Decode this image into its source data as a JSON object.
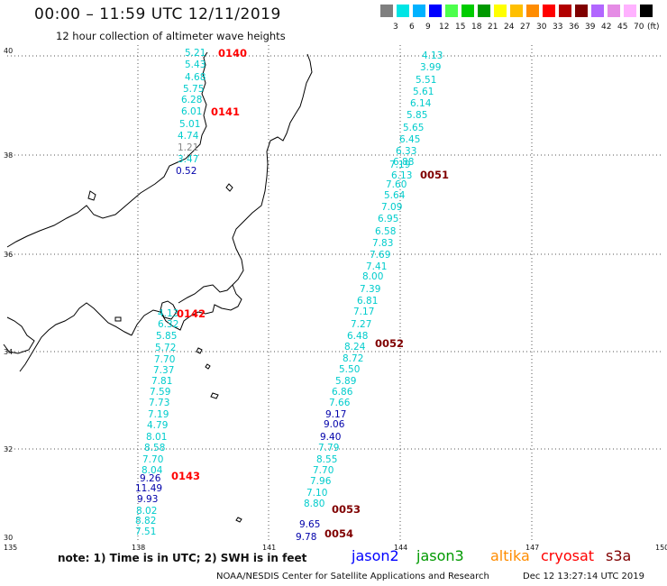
{
  "title": "00:00 – 11:59 UTC 12/11/2019",
  "subtitle": "12 hour collection of altimeter wave heights",
  "legend": {
    "colors": [
      "#7f7f7f",
      "#00e5e5",
      "#00b2ff",
      "#0000ff",
      "#4cff4c",
      "#00cc00",
      "#009900",
      "#ffff00",
      "#ffbf00",
      "#ff8c00",
      "#ff0000",
      "#b20000",
      "#800000",
      "#b266ff",
      "#e58ce5",
      "#ffb2ff",
      "#000000"
    ],
    "labels": [
      "3",
      "6",
      "9",
      "12",
      "15",
      "18",
      "21",
      "24",
      "27",
      "30",
      "33",
      "36",
      "39",
      "42",
      "45",
      "70"
    ],
    "unit": "(ft)"
  },
  "axes": {
    "lat_labels": [
      "40",
      "38",
      "36",
      "34",
      "32",
      "30"
    ],
    "lon_labels": [
      "135",
      "138",
      "141",
      "144",
      "147",
      "150"
    ]
  },
  "observations": [
    {
      "v": "5.21",
      "c": "#00cccc"
    },
    {
      "v": "5.43",
      "c": "#00cccc"
    },
    {
      "v": "4.68",
      "c": "#00cccc"
    },
    {
      "v": "5.75",
      "c": "#00cccc"
    },
    {
      "v": "6.28",
      "c": "#00cccc"
    },
    {
      "v": "6.01",
      "c": "#00cccc"
    },
    {
      "v": "5.01",
      "c": "#00cccc"
    },
    {
      "v": "4.74",
      "c": "#00cccc"
    },
    {
      "v": "1.21",
      "c": "#888888"
    },
    {
      "v": "3.47",
      "c": "#00cccc"
    },
    {
      "v": "0.52",
      "c": "#0000aa"
    },
    {
      "v": "4.13",
      "c": "#00cccc"
    },
    {
      "v": "3.99",
      "c": "#00cccc"
    },
    {
      "v": "5.51",
      "c": "#00cccc"
    },
    {
      "v": "5.61",
      "c": "#00cccc"
    },
    {
      "v": "6.14",
      "c": "#00cccc"
    },
    {
      "v": "5.85",
      "c": "#00cccc"
    },
    {
      "v": "5.65",
      "c": "#00cccc"
    },
    {
      "v": "6.45",
      "c": "#00cccc"
    },
    {
      "v": "6.33",
      "c": "#00cccc"
    },
    {
      "v": "6.88",
      "c": "#00cccc"
    },
    {
      "v": "7.19",
      "c": "#00cccc"
    },
    {
      "v": "6.13",
      "c": "#00cccc"
    },
    {
      "v": "7.60",
      "c": "#00cccc"
    },
    {
      "v": "5.64",
      "c": "#00cccc"
    },
    {
      "v": "7.09",
      "c": "#00cccc"
    },
    {
      "v": "6.95",
      "c": "#00cccc"
    },
    {
      "v": "6.58",
      "c": "#00cccc"
    },
    {
      "v": "7.83",
      "c": "#00cccc"
    },
    {
      "v": "7.69",
      "c": "#00cccc"
    },
    {
      "v": "7.41",
      "c": "#00cccc"
    },
    {
      "v": "8.00",
      "c": "#00cccc"
    },
    {
      "v": "7.39",
      "c": "#00cccc"
    },
    {
      "v": "6.81",
      "c": "#00cccc"
    },
    {
      "v": "7.17",
      "c": "#00cccc"
    },
    {
      "v": "7.27",
      "c": "#00cccc"
    },
    {
      "v": "6.48",
      "c": "#00cccc"
    },
    {
      "v": "8.24",
      "c": "#00cccc"
    },
    {
      "v": "8.72",
      "c": "#00cccc"
    },
    {
      "v": "5.50",
      "c": "#00cccc"
    },
    {
      "v": "5.89",
      "c": "#00cccc"
    },
    {
      "v": "6.86",
      "c": "#00cccc"
    },
    {
      "v": "7.66",
      "c": "#00cccc"
    },
    {
      "v": "9.17",
      "c": "#0000aa"
    },
    {
      "v": "9.06",
      "c": "#0000aa"
    },
    {
      "v": "9.40",
      "c": "#0000aa"
    },
    {
      "v": "7.79",
      "c": "#00cccc"
    },
    {
      "v": "8.55",
      "c": "#00cccc"
    },
    {
      "v": "7.70",
      "c": "#00cccc"
    },
    {
      "v": "7.96",
      "c": "#00cccc"
    },
    {
      "v": "7.10",
      "c": "#00cccc"
    },
    {
      "v": "8.80",
      "c": "#00cccc"
    },
    {
      "v": "9.65",
      "c": "#0000aa"
    },
    {
      "v": "9.78",
      "c": "#0000aa"
    },
    {
      "v": "4.13",
      "c": "#00cccc"
    },
    {
      "v": "6.32",
      "c": "#00cccc"
    },
    {
      "v": "5.85",
      "c": "#00cccc"
    },
    {
      "v": "5.72",
      "c": "#00cccc"
    },
    {
      "v": "7.70",
      "c": "#00cccc"
    },
    {
      "v": "7.37",
      "c": "#00cccc"
    },
    {
      "v": "7.81",
      "c": "#00cccc"
    },
    {
      "v": "7.59",
      "c": "#00cccc"
    },
    {
      "v": "7.73",
      "c": "#00cccc"
    },
    {
      "v": "7.19",
      "c": "#00cccc"
    },
    {
      "v": "4.79",
      "c": "#00cccc"
    },
    {
      "v": "8.01",
      "c": "#00cccc"
    },
    {
      "v": "8.58",
      "c": "#00cccc"
    },
    {
      "v": "7.70",
      "c": "#00cccc"
    },
    {
      "v": "8.04",
      "c": "#00cccc"
    },
    {
      "v": "9.26",
      "c": "#0000aa"
    },
    {
      "v": "11.49",
      "c": "#0000aa"
    },
    {
      "v": "9.93",
      "c": "#0000aa"
    },
    {
      "v": "8.02",
      "c": "#00cccc"
    },
    {
      "v": "8.82",
      "c": "#00cccc"
    },
    {
      "v": "7.51",
      "c": "#00cccc"
    }
  ],
  "passes": [
    {
      "t": "0140",
      "c": "#ff0000"
    },
    {
      "t": "0141",
      "c": "#ff0000"
    },
    {
      "t": "0142",
      "c": "#ff0000"
    },
    {
      "t": "0143",
      "c": "#ff0000"
    },
    {
      "t": "0051",
      "c": "#800000"
    },
    {
      "t": "0052",
      "c": "#800000"
    },
    {
      "t": "0053",
      "c": "#800000"
    },
    {
      "t": "0054",
      "c": "#800000"
    }
  ],
  "note": "note: 1) Time is in UTC; 2) SWH is in feet",
  "satellites": [
    {
      "name": "jason2",
      "c": "#0000ff"
    },
    {
      "name": "jason3",
      "c": "#009900"
    },
    {
      "name": "altika",
      "c": "#ff8c00"
    },
    {
      "name": "cryosat",
      "c": "#ff0000"
    },
    {
      "name": "s3a",
      "c": "#800000"
    }
  ],
  "credit": "NOAA/NESDIS Center for Satellite Applications and Research",
  "timestamp": "Dec 12 13:27:14 UTC 2019"
}
